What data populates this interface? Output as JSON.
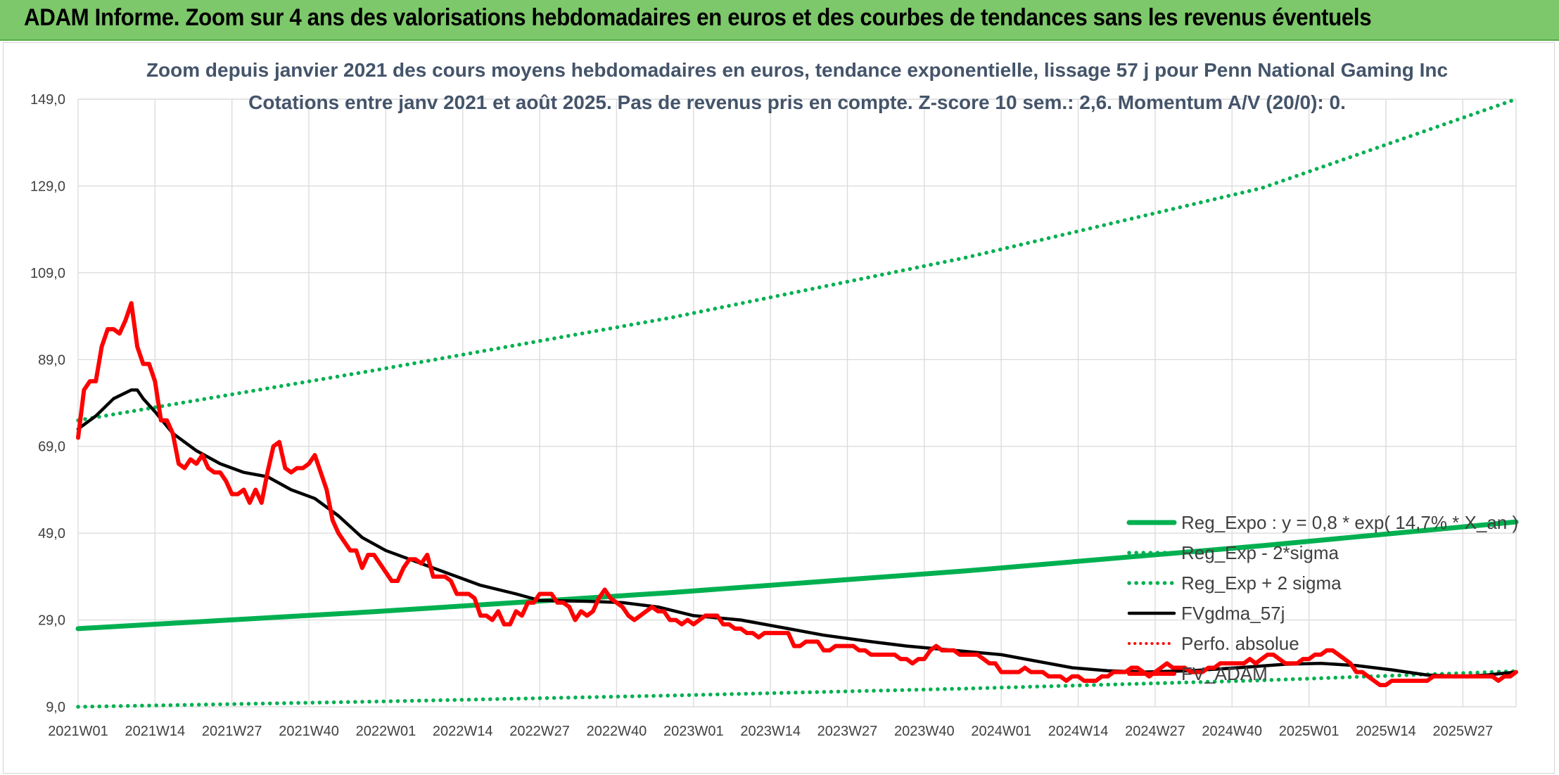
{
  "banner": {
    "title": "ADAM Informe. Zoom sur 4 ans des valorisations hebdomadaires en euros et des courbes de tendances sans les revenus éventuels"
  },
  "colors": {
    "banner_bg": "#7dc86a",
    "reg_expo": "#00b050",
    "band": "#00b050",
    "fv": "#000000",
    "price": "#ff0000",
    "perfo": "#ff0000"
  },
  "chart_data": {
    "type": "line",
    "title": "Zoom depuis janvier 2021 des cours moyens hebdomadaires en euros, tendance exponentielle, lissage 57 j pour Penn National Gaming Inc",
    "subtitle": "Cotations entre janv 2021 et août 2025. Pas de revenus pris en compte. Z-score 10 sem.: 2,6. Momentum A/V (20/0): 0.",
    "xlabel": "",
    "ylabel": "",
    "ylim": [
      9,
      149
    ],
    "yticks": [
      "149,0",
      "129,0",
      "109,0",
      "89,0",
      "69,0",
      "49,0",
      "29,0",
      "9,0"
    ],
    "ytick_values": [
      149,
      129,
      109,
      89,
      69,
      49,
      29,
      9
    ],
    "x_categories": [
      "2021W01",
      "2021W14",
      "2021W27",
      "2021W40",
      "2022W01",
      "2022W14",
      "2022W27",
      "2022W40",
      "2023W01",
      "2023W14",
      "2023W27",
      "2023W40",
      "2024W01",
      "2024W14",
      "2024W27",
      "2024W40",
      "2025W01",
      "2025W14",
      "2025W27"
    ],
    "x_week_index": [
      0,
      13,
      26,
      39,
      52,
      65,
      78,
      91,
      104,
      117,
      130,
      143,
      156,
      169,
      182,
      195,
      208,
      221,
      234
    ],
    "n_weeks": 243,
    "grid": "vertical and horizontal",
    "legend_position": "bottom-right",
    "series": [
      {
        "name": "Reg_Expo : y = 0,8 * exp( 14,7% * X_an )",
        "style": "solid-thick",
        "points": [
          [
            0,
            27.0
          ],
          [
            50,
            30.9
          ],
          [
            100,
            35.3
          ],
          [
            150,
            40.3
          ],
          [
            200,
            46.1
          ],
          [
            243,
            51.6
          ]
        ]
      },
      {
        "name": "Reg_Exp - 2*sigma",
        "style": "dotted",
        "points": [
          [
            0,
            9.0
          ],
          [
            50,
            10.2
          ],
          [
            100,
            11.6
          ],
          [
            150,
            13.2
          ],
          [
            200,
            15.1
          ],
          [
            243,
            17.2
          ]
        ]
      },
      {
        "name": "Reg_Exp + 2 sigma",
        "style": "dotted",
        "points": [
          [
            0,
            75.0
          ],
          [
            50,
            86.5
          ],
          [
            100,
            98.6
          ],
          [
            150,
            112.5
          ],
          [
            200,
            128.5
          ],
          [
            243,
            149.0
          ]
        ]
      },
      {
        "name": "FVgdma_57j",
        "style": "solid",
        "points": [
          [
            0,
            73
          ],
          [
            3,
            76
          ],
          [
            6,
            80
          ],
          [
            9,
            82
          ],
          [
            10,
            82
          ],
          [
            11,
            80
          ],
          [
            13,
            77
          ],
          [
            16,
            72
          ],
          [
            20,
            68
          ],
          [
            24,
            65
          ],
          [
            28,
            63
          ],
          [
            32,
            62
          ],
          [
            36,
            59
          ],
          [
            40,
            57
          ],
          [
            44,
            53
          ],
          [
            48,
            48
          ],
          [
            52,
            45
          ],
          [
            56,
            43
          ],
          [
            62,
            40
          ],
          [
            68,
            37
          ],
          [
            74,
            35
          ],
          [
            78,
            33.5
          ],
          [
            86,
            33.3
          ],
          [
            92,
            33
          ],
          [
            98,
            32
          ],
          [
            104,
            30
          ],
          [
            112,
            29
          ],
          [
            120,
            27
          ],
          [
            126,
            25.5
          ],
          [
            134,
            24
          ],
          [
            140,
            23
          ],
          [
            148,
            22
          ],
          [
            156,
            21
          ],
          [
            162,
            19.5
          ],
          [
            168,
            18
          ],
          [
            174,
            17.3
          ],
          [
            180,
            17
          ],
          [
            188,
            17.3
          ],
          [
            196,
            18
          ],
          [
            204,
            18.8
          ],
          [
            210,
            19
          ],
          [
            216,
            18.5
          ],
          [
            222,
            17.5
          ],
          [
            228,
            16.3
          ],
          [
            234,
            16
          ],
          [
            238,
            16.3
          ],
          [
            243,
            17
          ]
        ]
      },
      {
        "name": "Perfo. absolue",
        "style": "dotted",
        "points": []
      },
      {
        "name": "FV_ADAM",
        "style": "solid-red-thick",
        "points": [
          [
            0,
            71
          ],
          [
            1,
            82
          ],
          [
            2,
            84
          ],
          [
            3,
            84
          ],
          [
            4,
            92
          ],
          [
            5,
            96
          ],
          [
            6,
            96
          ],
          [
            7,
            95
          ],
          [
            8,
            98
          ],
          [
            9,
            102
          ],
          [
            10,
            92
          ],
          [
            11,
            88
          ],
          [
            12,
            88
          ],
          [
            13,
            84
          ],
          [
            14,
            75
          ],
          [
            15,
            75
          ],
          [
            16,
            72
          ],
          [
            17,
            65
          ],
          [
            18,
            64
          ],
          [
            19,
            66
          ],
          [
            20,
            65
          ],
          [
            21,
            67
          ],
          [
            22,
            64
          ],
          [
            23,
            63
          ],
          [
            24,
            63
          ],
          [
            25,
            61
          ],
          [
            26,
            58
          ],
          [
            27,
            58
          ],
          [
            28,
            59
          ],
          [
            29,
            56
          ],
          [
            30,
            59
          ],
          [
            31,
            56
          ],
          [
            32,
            63
          ],
          [
            33,
            69
          ],
          [
            34,
            70
          ],
          [
            35,
            64
          ],
          [
            36,
            63
          ],
          [
            37,
            64
          ],
          [
            38,
            64
          ],
          [
            39,
            65
          ],
          [
            40,
            67
          ],
          [
            41,
            63
          ],
          [
            42,
            59
          ],
          [
            43,
            52
          ],
          [
            44,
            49
          ],
          [
            45,
            47
          ],
          [
            46,
            45
          ],
          [
            47,
            45
          ],
          [
            48,
            41
          ],
          [
            49,
            44
          ],
          [
            50,
            44
          ],
          [
            51,
            42
          ],
          [
            52,
            40
          ],
          [
            53,
            38
          ],
          [
            54,
            38
          ],
          [
            55,
            41
          ],
          [
            56,
            43
          ],
          [
            57,
            43
          ],
          [
            58,
            42
          ],
          [
            59,
            44
          ],
          [
            60,
            39
          ],
          [
            61,
            39
          ],
          [
            62,
            39
          ],
          [
            63,
            38
          ],
          [
            64,
            35
          ],
          [
            65,
            35
          ],
          [
            66,
            35
          ],
          [
            67,
            34
          ],
          [
            68,
            30
          ],
          [
            69,
            30
          ],
          [
            70,
            29
          ],
          [
            71,
            31
          ],
          [
            72,
            28
          ],
          [
            73,
            28
          ],
          [
            74,
            31
          ],
          [
            75,
            30
          ],
          [
            76,
            33
          ],
          [
            77,
            33
          ],
          [
            78,
            35
          ],
          [
            79,
            35
          ],
          [
            80,
            35
          ],
          [
            81,
            33
          ],
          [
            82,
            33
          ],
          [
            83,
            32
          ],
          [
            84,
            29
          ],
          [
            85,
            31
          ],
          [
            86,
            30
          ],
          [
            87,
            31
          ],
          [
            88,
            34
          ],
          [
            89,
            36
          ],
          [
            90,
            34
          ],
          [
            91,
            33
          ],
          [
            92,
            32
          ],
          [
            93,
            30
          ],
          [
            94,
            29
          ],
          [
            95,
            30
          ],
          [
            96,
            31
          ],
          [
            97,
            32
          ],
          [
            98,
            31
          ],
          [
            99,
            31
          ],
          [
            100,
            29
          ],
          [
            101,
            29
          ],
          [
            102,
            28
          ],
          [
            103,
            29
          ],
          [
            104,
            28
          ],
          [
            105,
            29
          ],
          [
            106,
            30
          ],
          [
            107,
            30
          ],
          [
            108,
            30
          ],
          [
            109,
            28
          ],
          [
            110,
            28
          ],
          [
            111,
            27
          ],
          [
            112,
            27
          ],
          [
            113,
            26
          ],
          [
            114,
            26
          ],
          [
            115,
            25
          ],
          [
            116,
            26
          ],
          [
            117,
            26
          ],
          [
            118,
            26
          ],
          [
            119,
            26
          ],
          [
            120,
            26
          ],
          [
            121,
            23
          ],
          [
            122,
            23
          ],
          [
            123,
            24
          ],
          [
            124,
            24
          ],
          [
            125,
            24
          ],
          [
            126,
            22
          ],
          [
            127,
            22
          ],
          [
            128,
            23
          ],
          [
            129,
            23
          ],
          [
            130,
            23
          ],
          [
            131,
            23
          ],
          [
            132,
            22
          ],
          [
            133,
            22
          ],
          [
            134,
            21
          ],
          [
            135,
            21
          ],
          [
            136,
            21
          ],
          [
            137,
            21
          ],
          [
            138,
            21
          ],
          [
            139,
            20
          ],
          [
            140,
            20
          ],
          [
            141,
            19
          ],
          [
            142,
            20
          ],
          [
            143,
            20
          ],
          [
            144,
            22
          ],
          [
            145,
            23
          ],
          [
            146,
            22
          ],
          [
            147,
            22
          ],
          [
            148,
            22
          ],
          [
            149,
            21
          ],
          [
            150,
            21
          ],
          [
            151,
            21
          ],
          [
            152,
            21
          ],
          [
            153,
            20
          ],
          [
            154,
            19
          ],
          [
            155,
            19
          ],
          [
            156,
            17
          ],
          [
            157,
            17
          ],
          [
            158,
            17
          ],
          [
            159,
            17
          ],
          [
            160,
            18
          ],
          [
            161,
            17
          ],
          [
            162,
            17
          ],
          [
            163,
            17
          ],
          [
            164,
            16
          ],
          [
            165,
            16
          ],
          [
            166,
            16
          ],
          [
            167,
            15
          ],
          [
            168,
            16
          ],
          [
            169,
            16
          ],
          [
            170,
            15
          ],
          [
            171,
            15
          ],
          [
            172,
            15
          ],
          [
            173,
            16
          ],
          [
            174,
            16
          ],
          [
            175,
            17
          ],
          [
            176,
            17
          ],
          [
            177,
            17
          ],
          [
            178,
            18
          ],
          [
            179,
            18
          ],
          [
            180,
            17
          ],
          [
            181,
            16
          ],
          [
            182,
            17
          ],
          [
            183,
            18
          ],
          [
            184,
            19
          ],
          [
            185,
            18
          ],
          [
            186,
            18
          ],
          [
            187,
            18
          ],
          [
            188,
            17
          ],
          [
            189,
            17
          ],
          [
            190,
            17
          ],
          [
            191,
            18
          ],
          [
            192,
            18
          ],
          [
            193,
            19
          ],
          [
            194,
            19
          ],
          [
            195,
            19
          ],
          [
            196,
            19
          ],
          [
            197,
            19
          ],
          [
            198,
            20
          ],
          [
            199,
            19
          ],
          [
            200,
            20
          ],
          [
            201,
            21
          ],
          [
            202,
            21
          ],
          [
            203,
            20
          ],
          [
            204,
            19
          ],
          [
            205,
            19
          ],
          [
            206,
            19
          ],
          [
            207,
            20
          ],
          [
            208,
            20
          ],
          [
            209,
            21
          ],
          [
            210,
            21
          ],
          [
            211,
            22
          ],
          [
            212,
            22
          ],
          [
            213,
            21
          ],
          [
            214,
            20
          ],
          [
            215,
            19
          ],
          [
            216,
            17
          ],
          [
            217,
            17
          ],
          [
            218,
            16
          ],
          [
            219,
            15
          ],
          [
            220,
            14
          ],
          [
            221,
            14
          ],
          [
            222,
            15
          ],
          [
            223,
            15
          ],
          [
            224,
            15
          ],
          [
            225,
            15
          ],
          [
            226,
            15
          ],
          [
            227,
            15
          ],
          [
            228,
            15
          ],
          [
            229,
            16
          ],
          [
            230,
            16
          ],
          [
            231,
            16
          ],
          [
            232,
            16
          ],
          [
            233,
            16
          ],
          [
            234,
            16
          ],
          [
            235,
            16
          ],
          [
            236,
            16
          ],
          [
            237,
            16
          ],
          [
            238,
            16
          ],
          [
            239,
            16
          ],
          [
            240,
            15
          ],
          [
            241,
            16
          ],
          [
            242,
            16
          ],
          [
            243,
            17
          ]
        ]
      }
    ]
  }
}
